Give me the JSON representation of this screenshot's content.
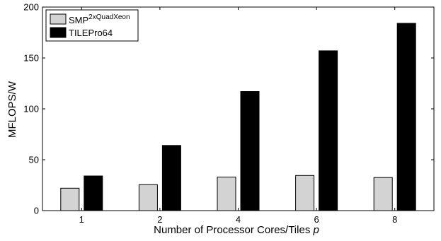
{
  "chart_data": {
    "type": "bar",
    "categories": [
      "1",
      "2",
      "4",
      "6",
      "8"
    ],
    "series": [
      {
        "name": "SMP",
        "name_sup": "2xQuadXeon",
        "color": "#d3d3d3",
        "values": [
          22,
          25.5,
          33,
          34.5,
          32.5
        ]
      },
      {
        "name": "TILEPro64",
        "color": "#000000",
        "values": [
          34,
          64,
          117,
          157,
          184
        ]
      }
    ],
    "xlabel": "Number of Processor Cores/Tiles",
    "xlabel_var": "p",
    "ylabel": "MFLOPS/W",
    "ylim": [
      0,
      200
    ],
    "yticks": [
      0,
      50,
      100,
      150,
      200
    ],
    "grid": false,
    "legend_position": "top-left"
  }
}
